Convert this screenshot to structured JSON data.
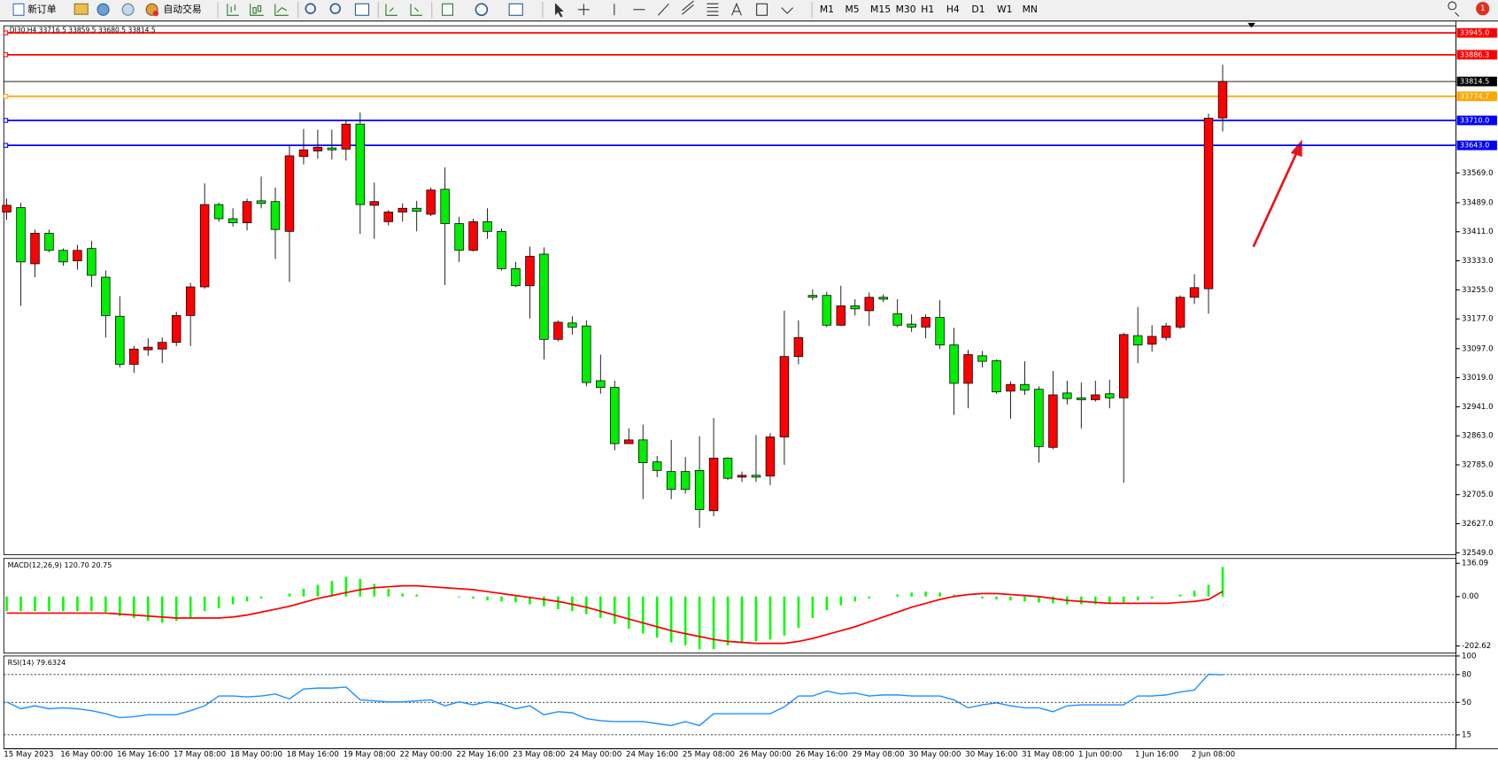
{
  "toolbar": {
    "new_order": "新订单",
    "auto_trading": "自动交易",
    "timeframes": [
      "M1",
      "M5",
      "M15",
      "M30",
      "H1",
      "H4",
      "D1",
      "W1",
      "MN"
    ],
    "notifications": "1"
  },
  "chart_data": [
    {
      "type": "candlestick",
      "title": "DJ30,H4  33716.5 33859.5 33680.5 33814.5",
      "categories": [
        "15 May 2023",
        null,
        null,
        null,
        "16 May 00:00",
        null,
        null,
        null,
        "16 May 16:00",
        null,
        null,
        null,
        "17 May 08:00",
        null,
        null,
        null,
        "18 May 00:00",
        null,
        null,
        null,
        "18 May 16:00",
        null,
        null,
        null,
        "19 May 08:00",
        null,
        null,
        null,
        "22 May 00:00",
        null,
        null,
        null,
        "22 May 16:00",
        null,
        null,
        null,
        "23 May 08:00",
        null,
        null,
        null,
        "24 May 00:00",
        null,
        null,
        null,
        "24 May 16:00",
        null,
        null,
        null,
        "25 May 08:00",
        null,
        null,
        null,
        "26 May 00:00",
        null,
        null,
        null,
        "26 May 16:00",
        null,
        null,
        null,
        "29 May 08:00",
        null,
        null,
        null,
        "30 May 00:00",
        null,
        null,
        null,
        "30 May 16:00",
        null,
        null,
        null,
        "31 May 08:00",
        null,
        null,
        null,
        "1 Jun 00:00",
        null,
        null,
        null,
        "1 Jun 16:00",
        null,
        null,
        null,
        "2 Jun 08:00",
        null,
        null
      ],
      "open": [
        33464,
        33476,
        33325,
        33407,
        33361,
        33333,
        33366,
        33289,
        33184,
        33055,
        33094,
        33096,
        33114,
        33186,
        33263,
        33484,
        33446,
        33435,
        33494,
        33492,
        33412,
        33613,
        33628,
        33636,
        33633,
        33700,
        33482,
        33438,
        33464,
        33474,
        33458,
        33525,
        33433,
        33361,
        33438,
        33412,
        33312,
        33266,
        33351,
        33122,
        33166,
        33158,
        33011,
        32993,
        32842,
        32852,
        32793,
        32767,
        32767,
        32770,
        32662,
        32803,
        32752,
        32757,
        32755,
        32860,
        33076,
        33240,
        33240,
        33160,
        33212,
        33199,
        33235,
        33191,
        33163,
        33155,
        33181,
        33107,
        33004,
        33078,
        33065,
        32983,
        33001,
        32988,
        32832,
        32978,
        32965,
        32960,
        32976,
        32965,
        33132,
        33109,
        33127,
        33155,
        33235,
        33258,
        33716.5
      ],
      "high": [
        33500,
        33489,
        33417,
        33417,
        33366,
        33376,
        33387,
        33307,
        33238,
        33104,
        33125,
        33127,
        33196,
        33274,
        33541,
        33489,
        33474,
        33500,
        33559,
        33530,
        33643,
        33687,
        33685,
        33685,
        33710,
        33731,
        33543,
        33469,
        33487,
        33494,
        33530,
        33584,
        33451,
        33446,
        33474,
        33420,
        33330,
        33371,
        33369,
        33173,
        33184,
        33173,
        33081,
        33011,
        32883,
        32893,
        32809,
        32852,
        32806,
        32862,
        32911,
        32806,
        32767,
        32865,
        32870,
        33199,
        33173,
        33256,
        33250,
        33266,
        33230,
        33248,
        33243,
        33230,
        33189,
        33189,
        33227,
        33153,
        33094,
        33091,
        33068,
        33009,
        33063,
        32996,
        33037,
        33011,
        33006,
        33011,
        33014,
        33140,
        33209,
        33160,
        33166,
        33240,
        33297,
        33728,
        33859.5
      ],
      "low": [
        33443,
        33212,
        33289,
        33356,
        33320,
        33309,
        33263,
        33127,
        33047,
        33032,
        33078,
        33058,
        33104,
        33104,
        33258,
        33438,
        33425,
        33415,
        33474,
        33338,
        33276,
        33592,
        33607,
        33605,
        33602,
        33405,
        33392,
        33428,
        33438,
        33412,
        33453,
        33268,
        33330,
        33358,
        33392,
        33307,
        33263,
        33178,
        33068,
        33117,
        33135,
        32996,
        32976,
        32824,
        32842,
        32693,
        32752,
        32693,
        32708,
        32616,
        32647,
        32744,
        32739,
        32739,
        32731,
        32785,
        33055,
        33227,
        33155,
        33158,
        33186,
        33158,
        33222,
        33155,
        33142,
        33125,
        33096,
        32919,
        32937,
        33047,
        32976,
        32909,
        32973,
        32791,
        32827,
        32947,
        32883,
        32955,
        32937,
        32737,
        33058,
        33089,
        33119,
        33150,
        33217,
        33191,
        33680.5
      ],
      "close": [
        33482,
        33330,
        33407,
        33361,
        33330,
        33361,
        33294,
        33186,
        33055,
        33096,
        33101,
        33114,
        33186,
        33263,
        33484,
        33446,
        33435,
        33492,
        33487,
        33417,
        33615,
        33631,
        33638,
        33631,
        33700,
        33484,
        33492,
        33464,
        33474,
        33466,
        33523,
        33433,
        33361,
        33438,
        33412,
        33312,
        33266,
        33345,
        33122,
        33168,
        33155,
        33006,
        32993,
        32842,
        32852,
        32791,
        32770,
        32719,
        32719,
        32665,
        32803,
        32749,
        32757,
        32752,
        32860,
        33076,
        33127,
        33235,
        33160,
        33212,
        33204,
        33235,
        33230,
        33160,
        33155,
        33181,
        33107,
        33004,
        33081,
        33063,
        32981,
        33001,
        32986,
        32834,
        32973,
        32963,
        32960,
        32973,
        32965,
        33135,
        33107,
        33130,
        33158,
        33235,
        33261,
        33716,
        33814.5
      ],
      "up_color": "#ff0000",
      "down_color": "#00ee00",
      "ylim": [
        32544,
        33964
      ],
      "yticks": [
        {
          "value": 33569,
          "label": "33569.0"
        },
        {
          "value": 33489,
          "label": "33489.0"
        },
        {
          "value": 33411,
          "label": "33411.0"
        },
        {
          "value": 33333,
          "label": "33333.0"
        },
        {
          "value": 33255,
          "label": "33255.0"
        },
        {
          "value": 33177,
          "label": "33177.0"
        },
        {
          "value": 33097,
          "label": "33097.0"
        },
        {
          "value": 33019,
          "label": "33019.0"
        },
        {
          "value": 32941,
          "label": "32941.0"
        },
        {
          "value": 32863,
          "label": "32863.0"
        },
        {
          "value": 32785,
          "label": "32785.0"
        },
        {
          "value": 32705,
          "label": "32705.0"
        },
        {
          "value": 32627,
          "label": "32627.0"
        },
        {
          "value": 32549,
          "label": "32549.0"
        }
      ],
      "levels": [
        {
          "value": 33945,
          "label": "33945.0",
          "color": "#ff0000"
        },
        {
          "value": 33886.3,
          "label": "33886.3",
          "color": "#ff0000"
        },
        {
          "value": 33814.5,
          "label": "33814.5",
          "color": "#000000"
        },
        {
          "value": 33774.7,
          "label": "33774.7",
          "color": "#ffa500"
        },
        {
          "value": 33710,
          "label": "33710.0",
          "color": "#0000ff"
        },
        {
          "value": 33643,
          "label": "33643.0",
          "color": "#0000ff"
        }
      ]
    },
    {
      "type": "macd",
      "title": "MACD(12,26,9) 120.70 20.75",
      "series": [
        {
          "kind": "bar",
          "color": "#00ff00",
          "values": [
            -60,
            -60,
            -60,
            -60,
            -60,
            -60,
            -60,
            -64,
            -80,
            -88,
            -100,
            -108,
            -100,
            -88,
            -60,
            -48,
            -32,
            -20,
            -8,
            0,
            12,
            32,
            48,
            64,
            80,
            72,
            52,
            32,
            12,
            8,
            0,
            0,
            -4,
            -8,
            -16,
            -20,
            -24,
            -32,
            -40,
            -52,
            -60,
            -72,
            -88,
            -112,
            -132,
            -152,
            -168,
            -188,
            -200,
            -216,
            -216,
            -200,
            -192,
            -184,
            -176,
            -160,
            -128,
            -88,
            -56,
            -36,
            -20,
            -8,
            0,
            8,
            16,
            20,
            16,
            8,
            0,
            -8,
            -12,
            -16,
            -20,
            -24,
            -28,
            -32,
            -32,
            -32,
            -28,
            -24,
            -16,
            -8,
            0,
            8,
            24,
            48,
            120.7
          ]
        },
        {
          "kind": "line",
          "color": "#ff0000",
          "values": [
            -68,
            -68,
            -68,
            -68,
            -68,
            -68,
            -68,
            -68,
            -72,
            -76,
            -80,
            -84,
            -88,
            -88,
            -88,
            -88,
            -84,
            -76,
            -64,
            -52,
            -40,
            -24,
            -8,
            4,
            16,
            28,
            36,
            40,
            44,
            44,
            40,
            36,
            32,
            28,
            20,
            12,
            4,
            -4,
            -12,
            -20,
            -32,
            -44,
            -60,
            -76,
            -92,
            -108,
            -124,
            -140,
            -152,
            -164,
            -176,
            -184,
            -188,
            -192,
            -192,
            -192,
            -184,
            -172,
            -156,
            -140,
            -124,
            -104,
            -84,
            -64,
            -44,
            -28,
            -12,
            0,
            8,
            12,
            12,
            8,
            4,
            0,
            -8,
            -16,
            -20,
            -24,
            -28,
            -28,
            -28,
            -28,
            -28,
            -24,
            -20,
            -12,
            20.75
          ]
        }
      ],
      "ylim": [
        -232,
        156
      ],
      "yticks": [
        136.09,
        {
          "value": 0,
          "label": "0.00"
        },
        -202.62
      ]
    },
    {
      "type": "line",
      "title": "RSI(14) 79.6324",
      "series": [
        {
          "color": "#1e90ff",
          "values": [
            50.5,
            43.1,
            46.3,
            43.1,
            44.1,
            43.1,
            41.0,
            37.8,
            33.5,
            34.6,
            36.7,
            36.7,
            36.7,
            41.0,
            46.3,
            56.9,
            56.9,
            55.9,
            56.9,
            59.0,
            53.7,
            64.4,
            65.4,
            65.4,
            66.5,
            52.7,
            51.6,
            50.5,
            50.5,
            51.6,
            52.7,
            46.3,
            50.5,
            47.3,
            50.5,
            48.4,
            43.1,
            46.3,
            36.7,
            39.9,
            38.8,
            32.4,
            30.3,
            29.3,
            29.3,
            29.3,
            27.1,
            25.0,
            29.3,
            25.0,
            37.8,
            37.8,
            37.8,
            37.8,
            37.8,
            45.2,
            56.9,
            56.9,
            62.2,
            59.0,
            60.1,
            56.9,
            58.0,
            58.0,
            56.9,
            56.9,
            56.9,
            52.7,
            44.1,
            47.3,
            49.5,
            46.3,
            44.1,
            44.1,
            39.9,
            46.3,
            47.3,
            47.3,
            47.3,
            47.3,
            56.9,
            56.9,
            58.0,
            61.2,
            63.3,
            80.3,
            79.6324
          ]
        }
      ],
      "ylim": [
        0,
        100
      ],
      "yticks": [
        100,
        80,
        50,
        15
      ],
      "dashed_grid": true
    }
  ]
}
